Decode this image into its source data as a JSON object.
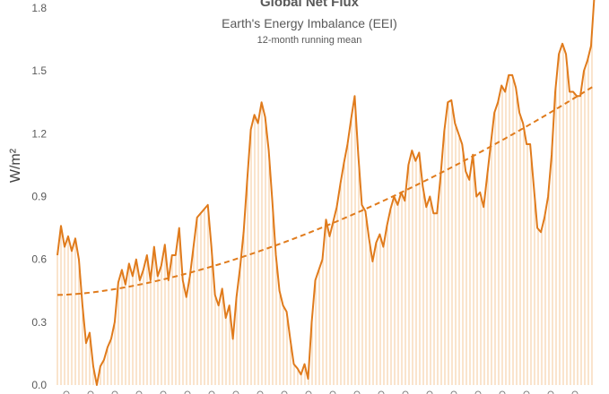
{
  "chart_data": {
    "type": "line",
    "title": "Global Net Flux",
    "subtitle": "Earth's Energy Imbalance (EEI)",
    "note": "12-month running mean",
    "ylabel": "W/m²",
    "xlabel": "",
    "ylim": [
      0,
      1.9
    ],
    "yticks": [
      "0.0",
      "0.3",
      "0.6",
      "0.9",
      "1.2",
      "1.5",
      "1.8"
    ],
    "ytick_values": [
      0,
      0.3,
      0.6,
      0.9,
      1.2,
      1.5,
      1.8
    ],
    "grid": false,
    "legend": "none",
    "series": [
      {
        "values": [
          0.62,
          0.76,
          0.66,
          0.71,
          0.64,
          0.7,
          0.6,
          0.38,
          0.2,
          0.25,
          0.09,
          0.0,
          0.09,
          0.12,
          0.18,
          0.22,
          0.3,
          0.49,
          0.55,
          0.48,
          0.58,
          0.52,
          0.6,
          0.5,
          0.55,
          0.62,
          0.5,
          0.66,
          0.52,
          0.57,
          0.67,
          0.5,
          0.62,
          0.62,
          0.75,
          0.5,
          0.42,
          0.52,
          0.66,
          0.8,
          0.82,
          0.84,
          0.86,
          0.66,
          0.43,
          0.38,
          0.46,
          0.32,
          0.38,
          0.22,
          0.42,
          0.56,
          0.73,
          0.98,
          1.22,
          1.29,
          1.25,
          1.35,
          1.28,
          1.12,
          0.88,
          0.62,
          0.45,
          0.38,
          0.35,
          0.22,
          0.1,
          0.08,
          0.05,
          0.1,
          0.03,
          0.3,
          0.5,
          0.55,
          0.6,
          0.79,
          0.71,
          0.78,
          0.85,
          0.96,
          1.06,
          1.15,
          1.27,
          1.38,
          1.1,
          0.86,
          0.83,
          0.7,
          0.59,
          0.68,
          0.72,
          0.66,
          0.76,
          0.84,
          0.9,
          0.86,
          0.92,
          0.88,
          1.05,
          1.12,
          1.07,
          1.11,
          0.95,
          0.85,
          0.9,
          0.82,
          0.82,
          1.0,
          1.21,
          1.35,
          1.36,
          1.25,
          1.2,
          1.15,
          1.02,
          0.98,
          1.1,
          0.9,
          0.92,
          0.85,
          1.0,
          1.15,
          1.3,
          1.35,
          1.43,
          1.4,
          1.48,
          1.48,
          1.42,
          1.3,
          1.25,
          1.15,
          1.15,
          0.95,
          0.75,
          0.73,
          0.8,
          0.9,
          1.1,
          1.4,
          1.58,
          1.63,
          1.58,
          1.4,
          1.4,
          1.38,
          1.38,
          1.5,
          1.55,
          1.62,
          1.88
        ]
      },
      {
        "name": "",
        "style": "dashed",
        "values": [
          0.43,
          1.43
        ]
      }
    ],
    "colors": {
      "line": "#e07b1c",
      "trend": "#e07b1c",
      "fill_bars": "#f4c89b"
    }
  }
}
